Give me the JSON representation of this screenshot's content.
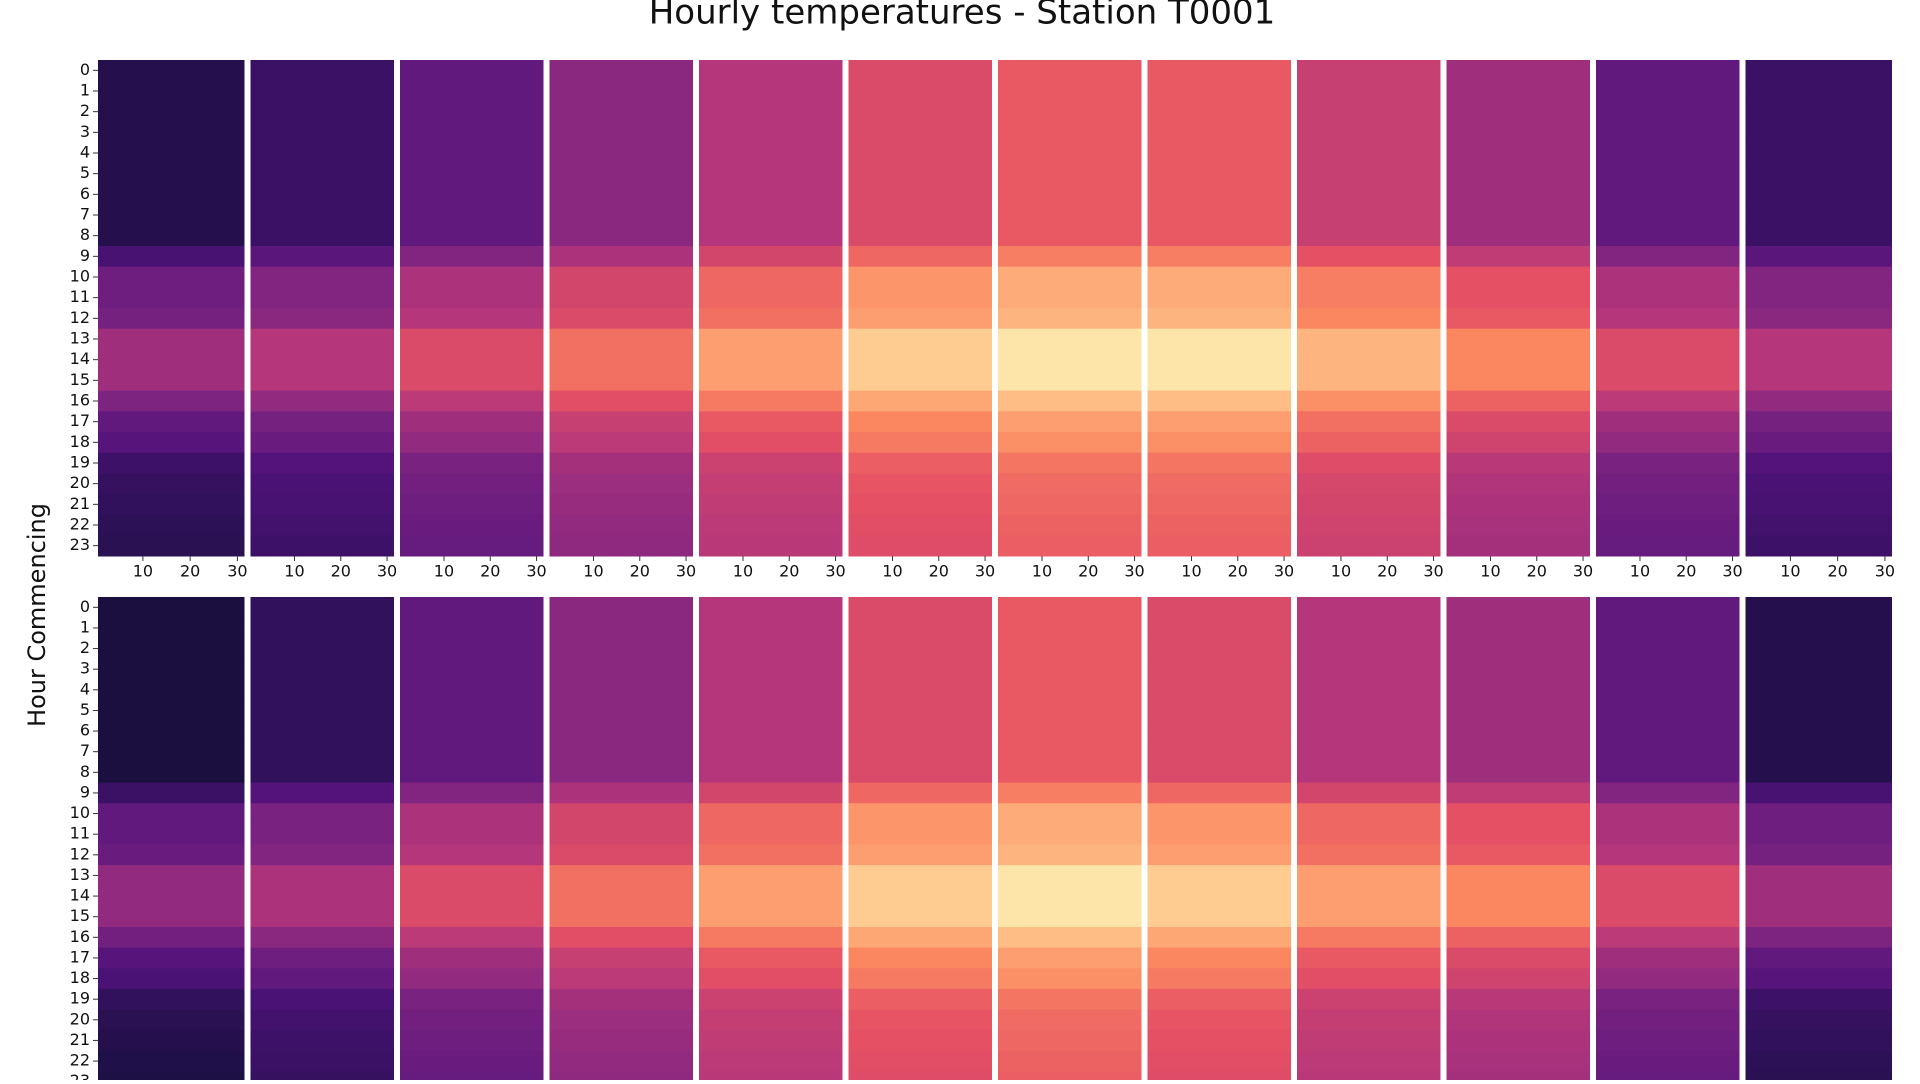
{
  "chart_data": {
    "type": "heatmap",
    "title": "Hourly temperatures - Station T0001",
    "ylabel": "Hour Commencing",
    "colormap": "magma",
    "vlim": [
      0,
      1
    ],
    "xlim": [
      0.5,
      31.5
    ],
    "xticks": [
      10,
      20,
      30
    ],
    "yticks": [
      0,
      1,
      2,
      3,
      4,
      5,
      6,
      7,
      8,
      9,
      10,
      11,
      12,
      13,
      14,
      15,
      16,
      17,
      18,
      19,
      20,
      21,
      22,
      23
    ],
    "panels": [
      {
        "months": [
          {
            "values": [
              0.15,
              0.15,
              0.15,
              0.15,
              0.15,
              0.15,
              0.15,
              0.15,
              0.15,
              0.23,
              0.33,
              0.33,
              0.35,
              0.45,
              0.45,
              0.45,
              0.37,
              0.3,
              0.27,
              0.21,
              0.19,
              0.18,
              0.17,
              0.16
            ]
          },
          {
            "values": [
              0.2,
              0.2,
              0.2,
              0.2,
              0.2,
              0.2,
              0.2,
              0.2,
              0.2,
              0.28,
              0.38,
              0.38,
              0.4,
              0.5,
              0.5,
              0.5,
              0.42,
              0.35,
              0.32,
              0.26,
              0.24,
              0.23,
              0.22,
              0.21
            ]
          },
          {
            "values": [
              0.3,
              0.3,
              0.3,
              0.3,
              0.3,
              0.3,
              0.3,
              0.3,
              0.3,
              0.38,
              0.48,
              0.48,
              0.5,
              0.6,
              0.6,
              0.6,
              0.52,
              0.45,
              0.42,
              0.36,
              0.34,
              0.33,
              0.32,
              0.31
            ]
          },
          {
            "values": [
              0.4,
              0.4,
              0.4,
              0.4,
              0.4,
              0.4,
              0.4,
              0.4,
              0.4,
              0.48,
              0.58,
              0.58,
              0.6,
              0.7,
              0.7,
              0.7,
              0.62,
              0.55,
              0.52,
              0.46,
              0.44,
              0.43,
              0.42,
              0.41
            ]
          },
          {
            "values": [
              0.5,
              0.5,
              0.5,
              0.5,
              0.5,
              0.5,
              0.5,
              0.5,
              0.5,
              0.58,
              0.68,
              0.68,
              0.7,
              0.8,
              0.8,
              0.8,
              0.72,
              0.65,
              0.62,
              0.56,
              0.54,
              0.53,
              0.52,
              0.51
            ]
          },
          {
            "values": [
              0.6,
              0.6,
              0.6,
              0.6,
              0.6,
              0.6,
              0.6,
              0.6,
              0.6,
              0.68,
              0.78,
              0.78,
              0.8,
              0.9,
              0.9,
              0.9,
              0.82,
              0.75,
              0.72,
              0.66,
              0.64,
              0.63,
              0.62,
              0.61
            ]
          },
          {
            "values": [
              0.65,
              0.65,
              0.65,
              0.65,
              0.65,
              0.65,
              0.65,
              0.65,
              0.65,
              0.73,
              0.83,
              0.83,
              0.85,
              0.95,
              0.95,
              0.95,
              0.87,
              0.8,
              0.77,
              0.71,
              0.69,
              0.68,
              0.67,
              0.66
            ]
          },
          {
            "values": [
              0.65,
              0.65,
              0.65,
              0.65,
              0.65,
              0.65,
              0.65,
              0.65,
              0.65,
              0.73,
              0.83,
              0.83,
              0.85,
              0.95,
              0.95,
              0.95,
              0.87,
              0.8,
              0.77,
              0.71,
              0.69,
              0.68,
              0.67,
              0.66
            ]
          },
          {
            "values": [
              0.55,
              0.55,
              0.55,
              0.55,
              0.55,
              0.55,
              0.55,
              0.55,
              0.55,
              0.63,
              0.73,
              0.73,
              0.75,
              0.85,
              0.85,
              0.85,
              0.77,
              0.7,
              0.67,
              0.61,
              0.59,
              0.58,
              0.57,
              0.56
            ]
          },
          {
            "values": [
              0.45,
              0.45,
              0.45,
              0.45,
              0.45,
              0.45,
              0.45,
              0.45,
              0.45,
              0.53,
              0.63,
              0.63,
              0.65,
              0.75,
              0.75,
              0.75,
              0.67,
              0.6,
              0.57,
              0.51,
              0.49,
              0.48,
              0.47,
              0.46
            ]
          },
          {
            "values": [
              0.3,
              0.3,
              0.3,
              0.3,
              0.3,
              0.3,
              0.3,
              0.3,
              0.3,
              0.38,
              0.48,
              0.48,
              0.5,
              0.6,
              0.6,
              0.6,
              0.52,
              0.45,
              0.42,
              0.36,
              0.34,
              0.33,
              0.32,
              0.31
            ]
          },
          {
            "values": [
              0.2,
              0.2,
              0.2,
              0.2,
              0.2,
              0.2,
              0.2,
              0.2,
              0.2,
              0.28,
              0.38,
              0.38,
              0.4,
              0.5,
              0.5,
              0.5,
              0.42,
              0.35,
              0.32,
              0.26,
              0.24,
              0.23,
              0.22,
              0.21
            ]
          }
        ]
      },
      {
        "months": [
          {
            "values": [
              0.12,
              0.12,
              0.12,
              0.12,
              0.12,
              0.12,
              0.12,
              0.12,
              0.12,
              0.2,
              0.3,
              0.3,
              0.32,
              0.42,
              0.42,
              0.42,
              0.34,
              0.27,
              0.24,
              0.18,
              0.16,
              0.15,
              0.14,
              0.13
            ]
          },
          {
            "values": [
              0.18,
              0.18,
              0.18,
              0.18,
              0.18,
              0.18,
              0.18,
              0.18,
              0.18,
              0.26,
              0.36,
              0.36,
              0.38,
              0.48,
              0.48,
              0.48,
              0.4,
              0.33,
              0.3,
              0.24,
              0.22,
              0.21,
              0.2,
              0.19
            ]
          },
          {
            "values": [
              0.3,
              0.3,
              0.3,
              0.3,
              0.3,
              0.3,
              0.3,
              0.3,
              0.3,
              0.38,
              0.48,
              0.48,
              0.5,
              0.6,
              0.6,
              0.6,
              0.52,
              0.45,
              0.42,
              0.36,
              0.34,
              0.33,
              0.32,
              0.31
            ]
          },
          {
            "values": [
              0.4,
              0.4,
              0.4,
              0.4,
              0.4,
              0.4,
              0.4,
              0.4,
              0.4,
              0.48,
              0.58,
              0.58,
              0.6,
              0.7,
              0.7,
              0.7,
              0.62,
              0.55,
              0.52,
              0.46,
              0.44,
              0.43,
              0.42,
              0.41
            ]
          },
          {
            "values": [
              0.5,
              0.5,
              0.5,
              0.5,
              0.5,
              0.5,
              0.5,
              0.5,
              0.5,
              0.58,
              0.68,
              0.68,
              0.7,
              0.8,
              0.8,
              0.8,
              0.72,
              0.65,
              0.62,
              0.56,
              0.54,
              0.53,
              0.52,
              0.51
            ]
          },
          {
            "values": [
              0.6,
              0.6,
              0.6,
              0.6,
              0.6,
              0.6,
              0.6,
              0.6,
              0.6,
              0.68,
              0.78,
              0.78,
              0.8,
              0.9,
              0.9,
              0.9,
              0.82,
              0.75,
              0.72,
              0.66,
              0.64,
              0.63,
              0.62,
              0.61
            ]
          },
          {
            "values": [
              0.65,
              0.65,
              0.65,
              0.65,
              0.65,
              0.65,
              0.65,
              0.65,
              0.65,
              0.73,
              0.83,
              0.83,
              0.85,
              0.95,
              0.95,
              0.95,
              0.87,
              0.8,
              0.77,
              0.71,
              0.69,
              0.68,
              0.67,
              0.66
            ]
          },
          {
            "values": [
              0.6,
              0.6,
              0.6,
              0.6,
              0.6,
              0.6,
              0.6,
              0.6,
              0.6,
              0.68,
              0.78,
              0.78,
              0.8,
              0.9,
              0.9,
              0.9,
              0.82,
              0.75,
              0.72,
              0.66,
              0.64,
              0.63,
              0.62,
              0.61
            ]
          },
          {
            "values": [
              0.5,
              0.5,
              0.5,
              0.5,
              0.5,
              0.5,
              0.5,
              0.5,
              0.5,
              0.58,
              0.68,
              0.68,
              0.7,
              0.8,
              0.8,
              0.8,
              0.72,
              0.65,
              0.62,
              0.56,
              0.54,
              0.53,
              0.52,
              0.51
            ]
          },
          {
            "values": [
              0.45,
              0.45,
              0.45,
              0.45,
              0.45,
              0.45,
              0.45,
              0.45,
              0.45,
              0.53,
              0.63,
              0.63,
              0.65,
              0.75,
              0.75,
              0.75,
              0.67,
              0.6,
              0.57,
              0.51,
              0.49,
              0.48,
              0.47,
              0.46
            ]
          },
          {
            "values": [
              0.3,
              0.3,
              0.3,
              0.3,
              0.3,
              0.3,
              0.3,
              0.3,
              0.3,
              0.38,
              0.48,
              0.48,
              0.5,
              0.6,
              0.6,
              0.6,
              0.52,
              0.45,
              0.42,
              0.36,
              0.34,
              0.33,
              0.32,
              0.31
            ]
          },
          {
            "values": [
              0.15,
              0.15,
              0.15,
              0.15,
              0.15,
              0.15,
              0.15,
              0.15,
              0.15,
              0.23,
              0.33,
              0.33,
              0.35,
              0.45,
              0.45,
              0.45,
              0.37,
              0.3,
              0.27,
              0.21,
              0.19,
              0.18,
              0.17,
              0.16
            ]
          }
        ]
      }
    ]
  }
}
